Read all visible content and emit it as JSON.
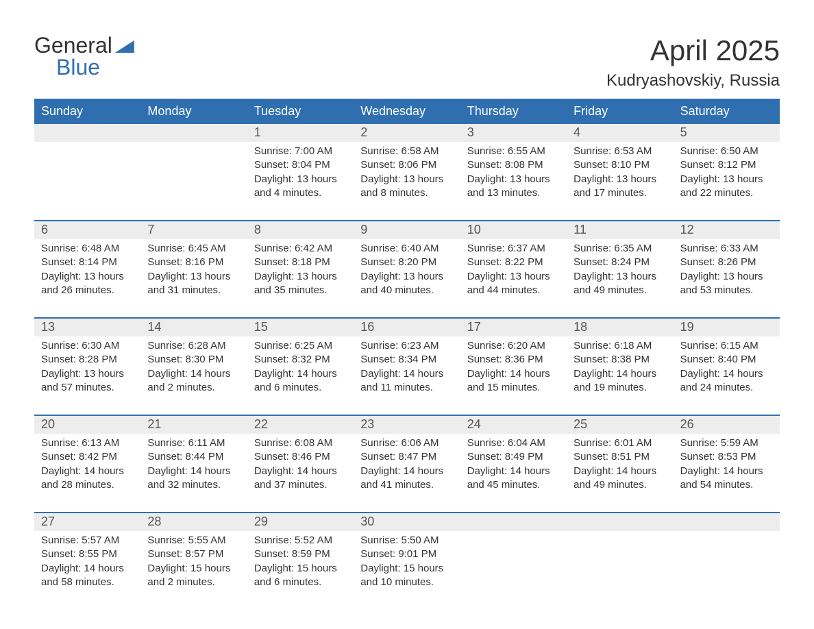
{
  "logo": {
    "word1": "General",
    "word2": "Blue"
  },
  "title": "April 2025",
  "location": "Kudryashovskiy, Russia",
  "colors": {
    "header_bg": "#2f6fb0",
    "header_text": "#ffffff",
    "daynum_bg": "#ededed",
    "daynum_text": "#555555",
    "body_text": "#333333",
    "row_border": "#2f6fb0",
    "page_bg": "#ffffff"
  },
  "typography": {
    "title_fontsize": 42,
    "location_fontsize": 24,
    "dayname_fontsize": 18,
    "daynum_fontsize": 18,
    "body_fontsize": 15
  },
  "day_names": [
    "Sunday",
    "Monday",
    "Tuesday",
    "Wednesday",
    "Thursday",
    "Friday",
    "Saturday"
  ],
  "weeks": [
    [
      {
        "empty": true
      },
      {
        "empty": true
      },
      {
        "day": "1",
        "sunrise": "Sunrise: 7:00 AM",
        "sunset": "Sunset: 8:04 PM",
        "daylight1": "Daylight: 13 hours",
        "daylight2": "and 4 minutes."
      },
      {
        "day": "2",
        "sunrise": "Sunrise: 6:58 AM",
        "sunset": "Sunset: 8:06 PM",
        "daylight1": "Daylight: 13 hours",
        "daylight2": "and 8 minutes."
      },
      {
        "day": "3",
        "sunrise": "Sunrise: 6:55 AM",
        "sunset": "Sunset: 8:08 PM",
        "daylight1": "Daylight: 13 hours",
        "daylight2": "and 13 minutes."
      },
      {
        "day": "4",
        "sunrise": "Sunrise: 6:53 AM",
        "sunset": "Sunset: 8:10 PM",
        "daylight1": "Daylight: 13 hours",
        "daylight2": "and 17 minutes."
      },
      {
        "day": "5",
        "sunrise": "Sunrise: 6:50 AM",
        "sunset": "Sunset: 8:12 PM",
        "daylight1": "Daylight: 13 hours",
        "daylight2": "and 22 minutes."
      }
    ],
    [
      {
        "day": "6",
        "sunrise": "Sunrise: 6:48 AM",
        "sunset": "Sunset: 8:14 PM",
        "daylight1": "Daylight: 13 hours",
        "daylight2": "and 26 minutes."
      },
      {
        "day": "7",
        "sunrise": "Sunrise: 6:45 AM",
        "sunset": "Sunset: 8:16 PM",
        "daylight1": "Daylight: 13 hours",
        "daylight2": "and 31 minutes."
      },
      {
        "day": "8",
        "sunrise": "Sunrise: 6:42 AM",
        "sunset": "Sunset: 8:18 PM",
        "daylight1": "Daylight: 13 hours",
        "daylight2": "and 35 minutes."
      },
      {
        "day": "9",
        "sunrise": "Sunrise: 6:40 AM",
        "sunset": "Sunset: 8:20 PM",
        "daylight1": "Daylight: 13 hours",
        "daylight2": "and 40 minutes."
      },
      {
        "day": "10",
        "sunrise": "Sunrise: 6:37 AM",
        "sunset": "Sunset: 8:22 PM",
        "daylight1": "Daylight: 13 hours",
        "daylight2": "and 44 minutes."
      },
      {
        "day": "11",
        "sunrise": "Sunrise: 6:35 AM",
        "sunset": "Sunset: 8:24 PM",
        "daylight1": "Daylight: 13 hours",
        "daylight2": "and 49 minutes."
      },
      {
        "day": "12",
        "sunrise": "Sunrise: 6:33 AM",
        "sunset": "Sunset: 8:26 PM",
        "daylight1": "Daylight: 13 hours",
        "daylight2": "and 53 minutes."
      }
    ],
    [
      {
        "day": "13",
        "sunrise": "Sunrise: 6:30 AM",
        "sunset": "Sunset: 8:28 PM",
        "daylight1": "Daylight: 13 hours",
        "daylight2": "and 57 minutes."
      },
      {
        "day": "14",
        "sunrise": "Sunrise: 6:28 AM",
        "sunset": "Sunset: 8:30 PM",
        "daylight1": "Daylight: 14 hours",
        "daylight2": "and 2 minutes."
      },
      {
        "day": "15",
        "sunrise": "Sunrise: 6:25 AM",
        "sunset": "Sunset: 8:32 PM",
        "daylight1": "Daylight: 14 hours",
        "daylight2": "and 6 minutes."
      },
      {
        "day": "16",
        "sunrise": "Sunrise: 6:23 AM",
        "sunset": "Sunset: 8:34 PM",
        "daylight1": "Daylight: 14 hours",
        "daylight2": "and 11 minutes."
      },
      {
        "day": "17",
        "sunrise": "Sunrise: 6:20 AM",
        "sunset": "Sunset: 8:36 PM",
        "daylight1": "Daylight: 14 hours",
        "daylight2": "and 15 minutes."
      },
      {
        "day": "18",
        "sunrise": "Sunrise: 6:18 AM",
        "sunset": "Sunset: 8:38 PM",
        "daylight1": "Daylight: 14 hours",
        "daylight2": "and 19 minutes."
      },
      {
        "day": "19",
        "sunrise": "Sunrise: 6:15 AM",
        "sunset": "Sunset: 8:40 PM",
        "daylight1": "Daylight: 14 hours",
        "daylight2": "and 24 minutes."
      }
    ],
    [
      {
        "day": "20",
        "sunrise": "Sunrise: 6:13 AM",
        "sunset": "Sunset: 8:42 PM",
        "daylight1": "Daylight: 14 hours",
        "daylight2": "and 28 minutes."
      },
      {
        "day": "21",
        "sunrise": "Sunrise: 6:11 AM",
        "sunset": "Sunset: 8:44 PM",
        "daylight1": "Daylight: 14 hours",
        "daylight2": "and 32 minutes."
      },
      {
        "day": "22",
        "sunrise": "Sunrise: 6:08 AM",
        "sunset": "Sunset: 8:46 PM",
        "daylight1": "Daylight: 14 hours",
        "daylight2": "and 37 minutes."
      },
      {
        "day": "23",
        "sunrise": "Sunrise: 6:06 AM",
        "sunset": "Sunset: 8:47 PM",
        "daylight1": "Daylight: 14 hours",
        "daylight2": "and 41 minutes."
      },
      {
        "day": "24",
        "sunrise": "Sunrise: 6:04 AM",
        "sunset": "Sunset: 8:49 PM",
        "daylight1": "Daylight: 14 hours",
        "daylight2": "and 45 minutes."
      },
      {
        "day": "25",
        "sunrise": "Sunrise: 6:01 AM",
        "sunset": "Sunset: 8:51 PM",
        "daylight1": "Daylight: 14 hours",
        "daylight2": "and 49 minutes."
      },
      {
        "day": "26",
        "sunrise": "Sunrise: 5:59 AM",
        "sunset": "Sunset: 8:53 PM",
        "daylight1": "Daylight: 14 hours",
        "daylight2": "and 54 minutes."
      }
    ],
    [
      {
        "day": "27",
        "sunrise": "Sunrise: 5:57 AM",
        "sunset": "Sunset: 8:55 PM",
        "daylight1": "Daylight: 14 hours",
        "daylight2": "and 58 minutes."
      },
      {
        "day": "28",
        "sunrise": "Sunrise: 5:55 AM",
        "sunset": "Sunset: 8:57 PM",
        "daylight1": "Daylight: 15 hours",
        "daylight2": "and 2 minutes."
      },
      {
        "day": "29",
        "sunrise": "Sunrise: 5:52 AM",
        "sunset": "Sunset: 8:59 PM",
        "daylight1": "Daylight: 15 hours",
        "daylight2": "and 6 minutes."
      },
      {
        "day": "30",
        "sunrise": "Sunrise: 5:50 AM",
        "sunset": "Sunset: 9:01 PM",
        "daylight1": "Daylight: 15 hours",
        "daylight2": "and 10 minutes."
      },
      {
        "empty": true
      },
      {
        "empty": true
      },
      {
        "empty": true
      }
    ]
  ]
}
